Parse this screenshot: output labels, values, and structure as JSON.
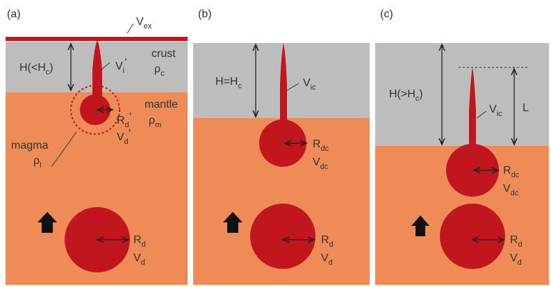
{
  "panels": [
    {
      "label": "(a)",
      "vex": {
        "main": "V",
        "sub": "ex"
      },
      "height": {
        "main": "H(<H",
        "sub": "c",
        "end": ")"
      },
      "dike_volume": {
        "main": "V",
        "sub": "i",
        "prime": "’"
      },
      "crust": "crust",
      "crust_density": {
        "main": "ρ",
        "sub": "c"
      },
      "mantle": "mantle",
      "mantle_density": {
        "main": "ρ",
        "sub": "m"
      },
      "small_radius": {
        "main": "R",
        "sub": "d",
        "prime": "’"
      },
      "small_volume": {
        "main": "V",
        "sub": "d",
        "prime": "’"
      },
      "magma": "magma",
      "magma_density": {
        "main": "ρ",
        "sub": "l"
      },
      "radius": {
        "main": "R",
        "sub": "d"
      },
      "volume": {
        "main": "V",
        "sub": "d"
      }
    },
    {
      "label": "(b)",
      "height": {
        "main": "H=H",
        "sub": "c"
      },
      "dike_volume": {
        "main": "V",
        "sub": "ic"
      },
      "small_radius": {
        "main": "R",
        "sub": "dc"
      },
      "small_volume": {
        "main": "V",
        "sub": "dc"
      },
      "radius": {
        "main": "R",
        "sub": "d"
      },
      "volume": {
        "main": "V",
        "sub": "d"
      }
    },
    {
      "label": "(c)",
      "height": {
        "main": "H(>H",
        "sub": "c",
        "end": ")"
      },
      "dike_volume": {
        "main": "V",
        "sub": "ic"
      },
      "length": "L",
      "small_radius": {
        "main": "R",
        "sub": "dc"
      },
      "small_volume": {
        "main": "V",
        "sub": "dc"
      },
      "radius": {
        "main": "R",
        "sub": "d"
      },
      "volume": {
        "main": "V",
        "sub": "d"
      }
    }
  ]
}
